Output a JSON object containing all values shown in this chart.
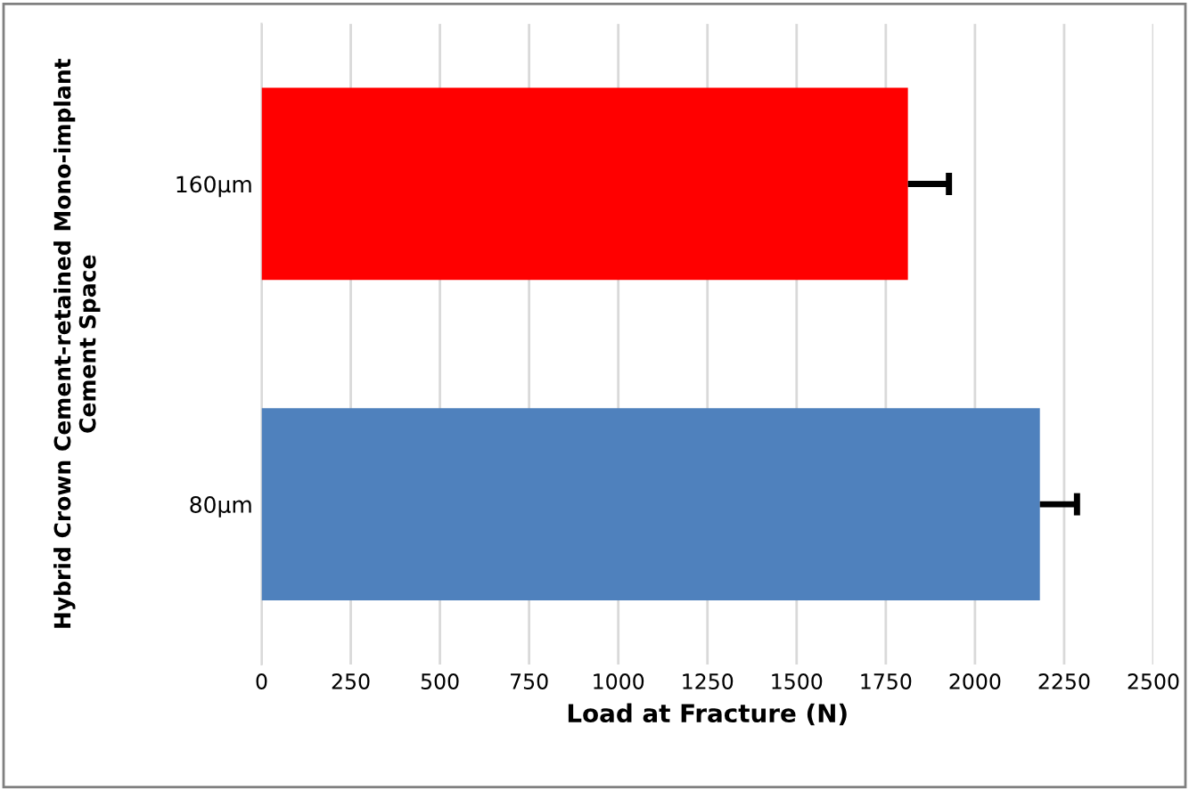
{
  "chart_data": {
    "type": "bar",
    "orientation": "horizontal",
    "categories": [
      "160µm",
      "80µm"
    ],
    "values": [
      1812,
      2182
    ],
    "colors": [
      "#ff0000",
      "#4f81bd"
    ],
    "errors": [
      [
        1812,
        1927
      ],
      [
        2182,
        2286
      ]
    ],
    "xlabel": "Load at Fracture (N)",
    "ylabel": "Hybrid Crown Cement-retained Mono-implant\nCement Space",
    "xlim": [
      0,
      2500
    ],
    "xticks": [
      0,
      250,
      500,
      750,
      1000,
      1250,
      1500,
      1750,
      2000,
      2250,
      2500
    ],
    "grid": "x"
  }
}
